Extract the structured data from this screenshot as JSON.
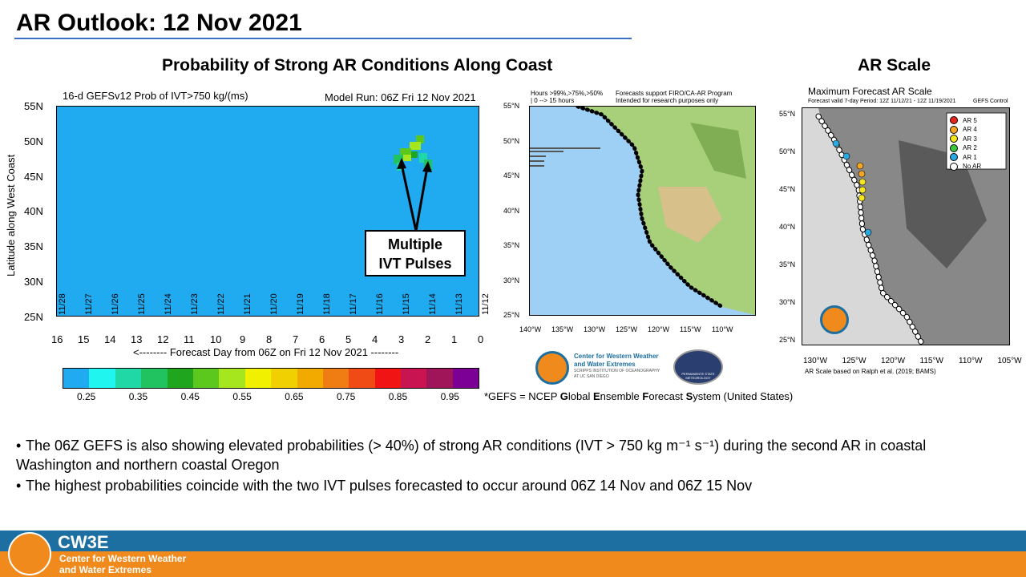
{
  "slide": {
    "title": "AR Outlook: 12 Nov 2021",
    "heading_left": "Probability of Strong AR Conditions Along Coast",
    "heading_right": "AR Scale"
  },
  "main_plot": {
    "title_left": "16-d GEFSv12 Prob of IVT>750 kg/(ms)",
    "title_right": "Model Run: 06Z Fri 12 Nov 2021",
    "y_axis_label": "Latitude along West Coast",
    "y_ticks": [
      "55N",
      "50N",
      "45N",
      "40N",
      "35N",
      "30N",
      "25N"
    ],
    "x_ticks": [
      "16",
      "15",
      "14",
      "13",
      "12",
      "11",
      "10",
      "9",
      "8",
      "7",
      "6",
      "5",
      "4",
      "3",
      "2",
      "1",
      "0"
    ],
    "x_axis_label": "<-------- Forecast Day from 06Z on Fri 12 Nov 2021 --------",
    "date_labels": [
      "11/28",
      "11/27",
      "11/26",
      "11/25",
      "11/24",
      "11/23",
      "11/22",
      "11/21",
      "11/20",
      "11/19",
      "11/18",
      "11/17",
      "11/16",
      "11/15",
      "11/14",
      "11/13",
      "11/12"
    ],
    "callout_line1": "Multiple",
    "callout_line2": "IVT Pulses"
  },
  "colorbar": {
    "colors": [
      "#20aaf0",
      "#20f5f0",
      "#20d7a6",
      "#20c35f",
      "#20a61e",
      "#5cc81e",
      "#a6e61e",
      "#f0f000",
      "#f0d000",
      "#f0aa00",
      "#f07d14",
      "#f04b14",
      "#f01414",
      "#c81450",
      "#a0145a",
      "#7d0096"
    ],
    "labels": [
      "0.25",
      "0.35",
      "0.45",
      "0.55",
      "0.65",
      "0.75",
      "0.85",
      "0.95"
    ]
  },
  "mid_map": {
    "header_left1": "Hours >99%,>75%,>50%",
    "header_left2": "| 0 --> 15 hours",
    "header_right1": "Forecasts support FIRO/CA-AR Program",
    "header_right2": "Intended for research purposes only",
    "lat_ticks": [
      "55°N",
      "50°N",
      "45°N",
      "40°N",
      "35°N",
      "30°N",
      "25°N"
    ],
    "lon_ticks": [
      "140°W",
      "135°W",
      "130°W",
      "125°W",
      "120°W",
      "115°W",
      "110°W"
    ]
  },
  "right_map": {
    "title": "Maximum Forecast AR Scale",
    "subtitle": "Forecast valid 7-day Period: 12Z 11/12/21 - 12Z 11/19/2021",
    "legend_title": "GEFS Control",
    "legend": [
      {
        "label": "AR 5",
        "color": "#e8261e"
      },
      {
        "label": "AR 4",
        "color": "#f5a623"
      },
      {
        "label": "AR 3",
        "color": "#f5e61e"
      },
      {
        "label": "AR 2",
        "color": "#3cc83c"
      },
      {
        "label": "AR 1",
        "color": "#2aa8e0"
      },
      {
        "label": "No AR",
        "color": "#ffffff"
      }
    ],
    "lat_ticks": [
      "55°N",
      "50°N",
      "45°N",
      "40°N",
      "35°N",
      "30°N",
      "25°N"
    ],
    "lon_ticks": [
      "130°W",
      "125°W",
      "120°W",
      "115°W",
      "110°W",
      "105°W"
    ],
    "credit": "AR Scale based on Ralph et al. (2019; BAMS)"
  },
  "logos": {
    "cw3e_line1": "Center for Western Weather",
    "cw3e_line2": "and Water Extremes",
    "cw3e_line3": "SCRIPPS INSTITUTION OF OCEANOGRAPHY",
    "cw3e_line4": "AT UC SAN DIEGO",
    "psm_label": "PERMANENTE STATE METEOROLOGY"
  },
  "gefs_note": {
    "prefix": "*GEFS = NCEP ",
    "g": "G",
    "lobal": "lobal ",
    "e": "E",
    "nsemble": "nsemble ",
    "f": "F",
    "orecast": "orecast ",
    "s": "S",
    "ystem": "ystem (United States)"
  },
  "bullets": [
    "The 06Z GEFS is also showing elevated probabilities (> 40%) of strong AR conditions (IVT > 750 kg m⁻¹ s⁻¹) during the second AR in coastal Washington and northern coastal Oregon",
    "The highest probabilities coincide with the two IVT pulses forecasted to occur around 06Z 14 Nov and 06Z 15 Nov"
  ],
  "footer": {
    "brand": "CW3E",
    "line1": "Center for Western Weather",
    "line2": "and Water Extremes"
  }
}
